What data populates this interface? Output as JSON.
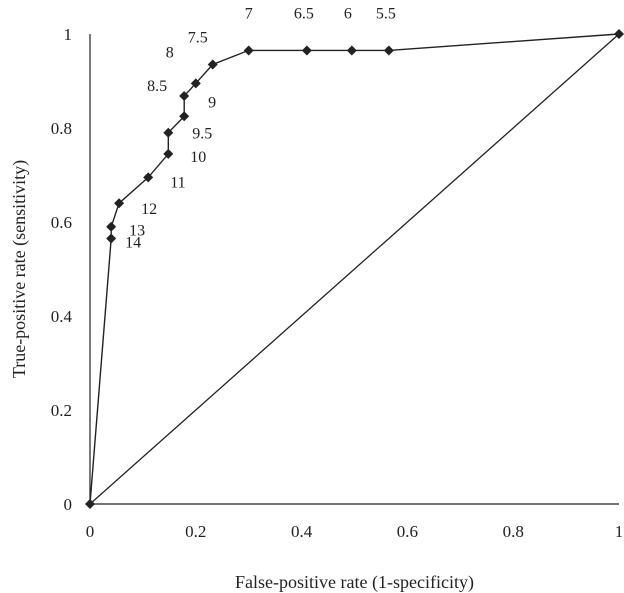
{
  "chart_data": {
    "type": "line",
    "xlabel": "False-positive rate (1-specificity)",
    "ylabel": "True-positive rate (sensitivity)",
    "xlim": [
      0,
      1
    ],
    "ylim": [
      0,
      1
    ],
    "xticks": [
      "0",
      "0.2",
      "0.4",
      "0.6",
      "0.8",
      "1"
    ],
    "yticks": [
      "0",
      "0.2",
      "0.4",
      "0.6",
      "0.8",
      "1"
    ],
    "grid": false,
    "series": [
      {
        "points": [
          {
            "x": 0,
            "y": 0,
            "label": ""
          },
          {
            "x": 0.04,
            "y": 0.565,
            "label": "14"
          },
          {
            "x": 0.04,
            "y": 0.59,
            "label": "13"
          },
          {
            "x": 0.055,
            "y": 0.64,
            "label": "12"
          },
          {
            "x": 0.11,
            "y": 0.695,
            "label": "11"
          },
          {
            "x": 0.148,
            "y": 0.745,
            "label": "10"
          },
          {
            "x": 0.148,
            "y": 0.79,
            "label": "9.5"
          },
          {
            "x": 0.178,
            "y": 0.825,
            "label": "9"
          },
          {
            "x": 0.178,
            "y": 0.868,
            "label": "8.5"
          },
          {
            "x": 0.2,
            "y": 0.895,
            "label": "8"
          },
          {
            "x": 0.232,
            "y": 0.935,
            "label": "7.5"
          },
          {
            "x": 0.3,
            "y": 0.965,
            "label": "7"
          },
          {
            "x": 0.41,
            "y": 0.965,
            "label": "6.5"
          },
          {
            "x": 0.495,
            "y": 0.965,
            "label": "6"
          },
          {
            "x": 0.565,
            "y": 0.965,
            "label": "5.5"
          },
          {
            "x": 1,
            "y": 1,
            "label": ""
          }
        ]
      },
      {
        "points": [
          {
            "x": 0,
            "y": 0
          },
          {
            "x": 1,
            "y": 1
          }
        ]
      }
    ]
  }
}
